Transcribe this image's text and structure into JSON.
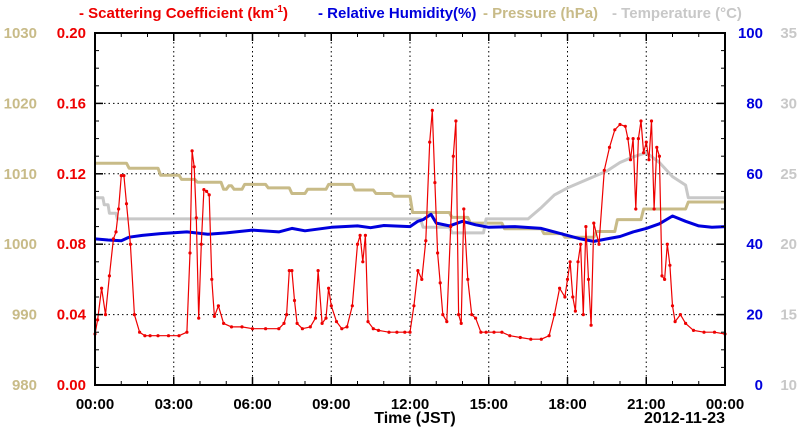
{
  "chart_data": {
    "type": "line",
    "legend": [
      {
        "name": "Scattering Coefficient (km",
        "sup": "-1",
        "close": ")",
        "color": "#ee0000"
      },
      {
        "name": "Relative Humidity(%)",
        "color": "#0000dd"
      },
      {
        "name": "Pressure (hPa)",
        "color": "#c8bb88"
      },
      {
        "name": "Temperature (°C)",
        "color": "#c8c8c8"
      }
    ],
    "xlabel": "Time (JST)",
    "date_label": "2012-11-23",
    "x_ticks": [
      "00:00",
      "03:00",
      "06:00",
      "09:00",
      "12:00",
      "15:00",
      "18:00",
      "21:00",
      "00:00"
    ],
    "xlim": [
      0,
      24
    ],
    "grid": true,
    "axes": {
      "scattering": {
        "range": [
          0,
          0.2
        ],
        "ticks": [
          "0.00",
          "0.04",
          "0.08",
          "0.12",
          "0.16",
          "0.20"
        ],
        "color": "#ee0000"
      },
      "pressure": {
        "range": [
          980,
          1030
        ],
        "ticks": [
          "980",
          "990",
          "1000",
          "1010",
          "1020",
          "1030"
        ],
        "color": "#c8bb88"
      },
      "humidity": {
        "range": [
          0,
          100
        ],
        "ticks": [
          "0",
          "20",
          "40",
          "60",
          "80",
          "100"
        ],
        "color": "#0000dd"
      },
      "temperature": {
        "range": [
          10,
          35
        ],
        "ticks": [
          "10",
          "15",
          "20",
          "25",
          "30",
          "35"
        ],
        "color": "#c8c8c8"
      }
    },
    "series": [
      {
        "name": "Scattering Coefficient",
        "axis": "scattering",
        "markers": true,
        "x": [
          0.0,
          0.1,
          0.25,
          0.4,
          0.55,
          0.7,
          0.8,
          0.9,
          1.0,
          1.1,
          1.2,
          1.35,
          1.5,
          1.7,
          1.9,
          2.1,
          2.4,
          2.8,
          3.2,
          3.5,
          3.62,
          3.7,
          3.78,
          3.86,
          3.95,
          4.05,
          4.15,
          4.25,
          4.35,
          4.45,
          4.55,
          4.7,
          4.9,
          5.2,
          5.6,
          6.0,
          6.5,
          7.0,
          7.2,
          7.3,
          7.4,
          7.5,
          7.6,
          7.7,
          7.9,
          8.2,
          8.4,
          8.5,
          8.65,
          8.8,
          8.9,
          9.0,
          9.2,
          9.4,
          9.6,
          9.8,
          10.0,
          10.1,
          10.2,
          10.3,
          10.4,
          10.6,
          10.8,
          11.2,
          11.5,
          11.8,
          12.0,
          12.15,
          12.3,
          12.45,
          12.6,
          12.75,
          12.85,
          12.95,
          13.05,
          13.15,
          13.25,
          13.4,
          13.55,
          13.65,
          13.75,
          13.85,
          13.95,
          14.05,
          14.2,
          14.35,
          14.5,
          14.7,
          14.9,
          15.2,
          15.5,
          15.8,
          16.2,
          16.6,
          17.0,
          17.3,
          17.5,
          17.7,
          17.9,
          18.0,
          18.1,
          18.2,
          18.3,
          18.4,
          18.5,
          18.6,
          18.7,
          18.8,
          18.9,
          19.0,
          19.2,
          19.4,
          19.6,
          19.8,
          20.0,
          20.2,
          20.3,
          20.4,
          20.5,
          20.6,
          20.7,
          20.8,
          20.9,
          21.0,
          21.1,
          21.2,
          21.3,
          21.4,
          21.5,
          21.6,
          21.7,
          21.8,
          21.9,
          22.0,
          22.1,
          22.3,
          22.5,
          22.8,
          23.2,
          23.6,
          24.0
        ],
        "y": [
          0.029,
          0.037,
          0.055,
          0.04,
          0.062,
          0.083,
          0.087,
          0.1,
          0.119,
          0.119,
          0.103,
          0.08,
          0.04,
          0.03,
          0.028,
          0.028,
          0.028,
          0.028,
          0.028,
          0.03,
          0.075,
          0.133,
          0.124,
          0.095,
          0.038,
          0.08,
          0.111,
          0.11,
          0.108,
          0.06,
          0.039,
          0.045,
          0.035,
          0.033,
          0.033,
          0.032,
          0.032,
          0.032,
          0.035,
          0.04,
          0.065,
          0.065,
          0.048,
          0.035,
          0.032,
          0.033,
          0.038,
          0.065,
          0.035,
          0.038,
          0.055,
          0.045,
          0.036,
          0.032,
          0.033,
          0.045,
          0.08,
          0.085,
          0.07,
          0.085,
          0.036,
          0.032,
          0.031,
          0.03,
          0.03,
          0.03,
          0.03,
          0.045,
          0.065,
          0.06,
          0.082,
          0.138,
          0.156,
          0.115,
          0.075,
          0.058,
          0.04,
          0.036,
          0.09,
          0.13,
          0.15,
          0.04,
          0.035,
          0.1,
          0.06,
          0.04,
          0.038,
          0.03,
          0.03,
          0.03,
          0.03,
          0.028,
          0.027,
          0.026,
          0.026,
          0.028,
          0.04,
          0.055,
          0.05,
          0.06,
          0.07,
          0.05,
          0.042,
          0.07,
          0.08,
          0.04,
          0.09,
          0.06,
          0.034,
          0.092,
          0.08,
          0.122,
          0.135,
          0.145,
          0.148,
          0.147,
          0.14,
          0.128,
          0.14,
          0.1,
          0.14,
          0.15,
          0.132,
          0.138,
          0.128,
          0.15,
          0.1,
          0.135,
          0.13,
          0.062,
          0.06,
          0.08,
          0.068,
          0.045,
          0.036,
          0.04,
          0.035,
          0.031,
          0.03,
          0.03,
          0.029
        ]
      },
      {
        "name": "Relative Humidity",
        "axis": "humidity",
        "markers": false,
        "x": [
          0,
          0.5,
          1.0,
          1.3,
          1.8,
          2.5,
          3.5,
          4.3,
          5.0,
          6.0,
          7.0,
          7.5,
          8.0,
          9.0,
          10.0,
          10.5,
          11.0,
          12.0,
          12.3,
          12.5,
          12.8,
          13.0,
          13.5,
          14.0,
          14.5,
          15.0,
          16.0,
          17.0,
          17.5,
          18.0,
          18.5,
          19.0,
          19.5,
          20.0,
          20.5,
          21.0,
          21.5,
          22.0,
          22.5,
          23.0,
          23.5,
          24.0
        ],
        "y": [
          41.5,
          41.2,
          41.0,
          42.0,
          42.5,
          43.0,
          43.5,
          42.8,
          43.2,
          44.0,
          43.5,
          44.5,
          43.8,
          44.8,
          45.2,
          44.7,
          45.3,
          45.0,
          46.5,
          47.0,
          48.5,
          46.0,
          45.2,
          46.5,
          45.5,
          44.8,
          45.0,
          44.5,
          43.5,
          42.5,
          41.5,
          40.8,
          41.5,
          42.2,
          43.5,
          44.5,
          45.8,
          48.0,
          46.5,
          45.2,
          44.8,
          45.0
        ]
      },
      {
        "name": "Pressure",
        "axis": "pressure",
        "markers": false,
        "x": [
          0,
          1.2,
          1.3,
          2.4,
          2.5,
          3.2,
          3.3,
          3.8,
          3.9,
          4.8,
          4.9,
          5.0,
          5.1,
          5.2,
          5.3,
          5.6,
          5.7,
          6.5,
          6.6,
          7.4,
          7.5,
          8.0,
          8.1,
          8.8,
          8.9,
          9.8,
          9.9,
          10.6,
          10.7,
          11.3,
          11.4,
          12.0,
          12.1,
          13.5,
          13.6,
          14.2,
          14.3,
          15.5,
          15.6,
          17.0,
          17.1,
          17.8,
          17.9,
          19.0,
          19.1,
          19.8,
          19.9,
          20.8,
          20.9,
          22.5,
          22.6,
          24.0
        ],
        "y": [
          1011.5,
          1011.5,
          1010.8,
          1010.8,
          1009.8,
          1009.8,
          1009.2,
          1009.2,
          1008.8,
          1008.8,
          1007.8,
          1007.8,
          1008.3,
          1008.3,
          1007.8,
          1007.8,
          1008.5,
          1008.5,
          1008.0,
          1008.0,
          1007.2,
          1007.2,
          1007.8,
          1007.8,
          1008.5,
          1008.5,
          1007.7,
          1007.7,
          1007.2,
          1007.2,
          1006.8,
          1006.8,
          1004.5,
          1004.5,
          1003.8,
          1003.8,
          1003.0,
          1003.0,
          1002.2,
          1002.2,
          1001.5,
          1001.5,
          1001.0,
          1001.0,
          1001.8,
          1001.8,
          1003.5,
          1003.5,
          1005.0,
          1005.0,
          1006.0,
          1006.0
        ]
      },
      {
        "name": "Temperature",
        "axis": "temperature",
        "markers": false,
        "x": [
          0,
          0.3,
          0.35,
          0.5,
          0.55,
          0.8,
          0.85,
          1.0,
          1.05,
          12.4,
          12.5,
          13.5,
          13.6,
          14.8,
          14.9,
          16.5,
          17.0,
          17.5,
          18.0,
          19.0,
          19.5,
          20.0,
          20.5,
          21.0,
          21.5,
          22.0,
          22.5,
          22.6,
          24.0
        ],
        "y": [
          23.3,
          23.3,
          22.8,
          22.8,
          22.2,
          22.2,
          21.8,
          21.8,
          21.8,
          21.8,
          21.2,
          21.2,
          20.8,
          20.8,
          21.8,
          21.8,
          22.6,
          23.5,
          24.0,
          24.8,
          25.2,
          25.8,
          26.2,
          26.5,
          25.8,
          24.8,
          24.2,
          23.3,
          23.3
        ]
      }
    ]
  }
}
